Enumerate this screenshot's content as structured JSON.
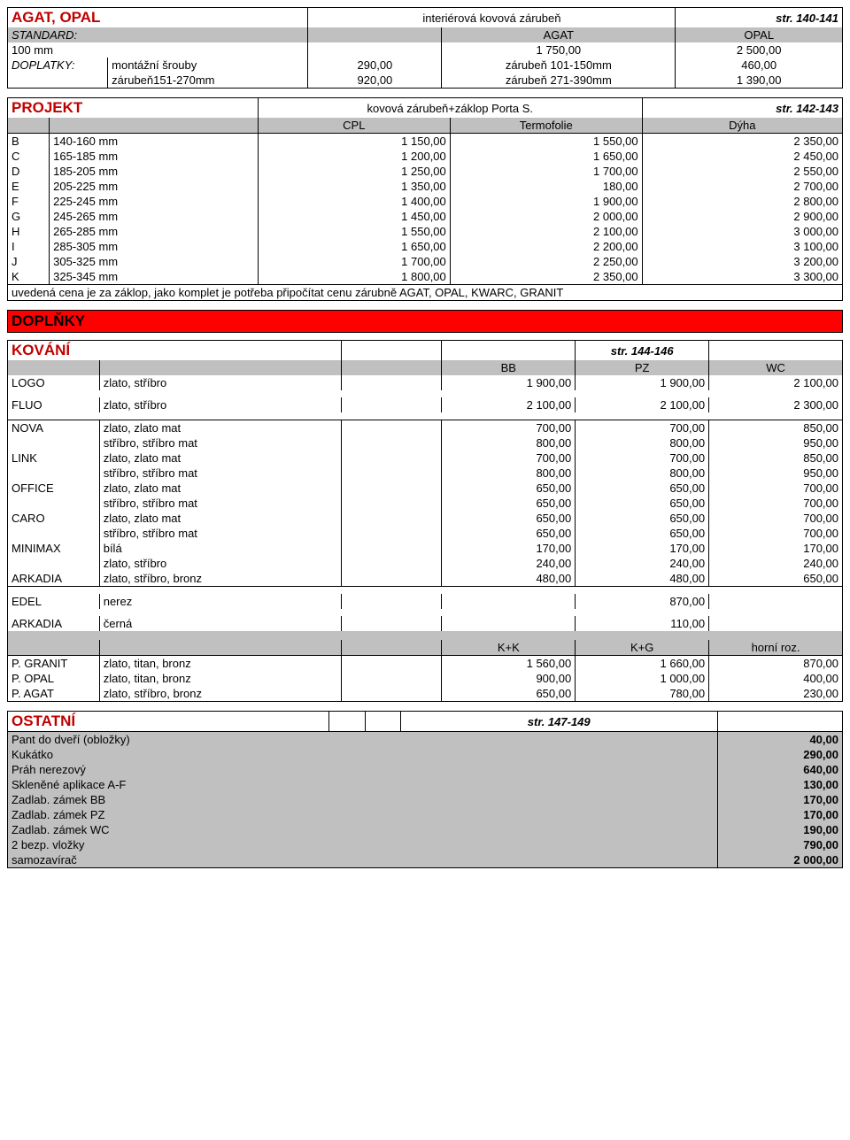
{
  "agat": {
    "title": "AGAT, OPAL",
    "subtitle": "interiérová kovová zárubeň",
    "page": "str. 140-141",
    "standard_label": "STANDARD:",
    "standard_cols": [
      "AGAT",
      "OPAL"
    ],
    "r100": {
      "label": "100 mm",
      "v1": "1 750,00",
      "v2": "2 500,00"
    },
    "doplatky_label": "DOPLATKY:",
    "dop": [
      {
        "label": "montážní šrouby",
        "v1": "290,00",
        "mid": "zárubeň 101-150mm",
        "v2": "460,00"
      },
      {
        "label": "zárubeň151-270mm",
        "v1": "920,00",
        "mid": "zárubeň 271-390mm",
        "v2": "1 390,00"
      }
    ]
  },
  "projekt": {
    "title": "PROJEKT",
    "subtitle": "kovová zárubeň+záklop Porta S.",
    "page": "str. 142-143",
    "cols": [
      "CPL",
      "Termofolie",
      "Dýha"
    ],
    "rows": [
      {
        "k": "B",
        "r": "140-160 mm",
        "c": [
          "1 150,00",
          "1 550,00",
          "2 350,00"
        ]
      },
      {
        "k": "C",
        "r": "165-185 mm",
        "c": [
          "1 200,00",
          "1 650,00",
          "2 450,00"
        ]
      },
      {
        "k": "D",
        "r": "185-205 mm",
        "c": [
          "1 250,00",
          "1 700,00",
          "2 550,00"
        ]
      },
      {
        "k": "E",
        "r": "205-225 mm",
        "c": [
          "1 350,00",
          "180,00",
          "2 700,00"
        ]
      },
      {
        "k": "F",
        "r": "225-245 mm",
        "c": [
          "1 400,00",
          "1 900,00",
          "2 800,00"
        ]
      },
      {
        "k": "G",
        "r": "245-265 mm",
        "c": [
          "1 450,00",
          "2 000,00",
          "2 900,00"
        ]
      },
      {
        "k": "H",
        "r": "265-285 mm",
        "c": [
          "1 550,00",
          "2 100,00",
          "3 000,00"
        ]
      },
      {
        "k": "I",
        "r": "285-305 mm",
        "c": [
          "1 650,00",
          "2 200,00",
          "3 100,00"
        ]
      },
      {
        "k": "J",
        "r": "305-325 mm",
        "c": [
          "1 700,00",
          "2 250,00",
          "3 200,00"
        ]
      },
      {
        "k": "K",
        "r": "325-345 mm",
        "c": [
          "1 800,00",
          "2 350,00",
          "3 300,00"
        ]
      }
    ],
    "note": "uvedená cena je za záklop, jako komplet je potřeba připočítat cenu zárubně AGAT, OPAL, KWARC, GRANIT"
  },
  "doplnky": {
    "title": "DOPLŇKY"
  },
  "kovani": {
    "title": "KOVÁNÍ",
    "page": "str. 144-146",
    "cols": [
      "BB",
      "PZ",
      "WC"
    ],
    "logo": {
      "k": "LOGO",
      "d": "zlato, stříbro",
      "v": [
        "1 900,00",
        "1 900,00",
        "2 100,00"
      ]
    },
    "fluo": {
      "k": "FLUO",
      "d": "zlato, stříbro",
      "v": [
        "2 100,00",
        "2 100,00",
        "2 300,00"
      ]
    },
    "group": [
      {
        "k": "NOVA",
        "d": "zlato, zlato mat",
        "v": [
          "700,00",
          "700,00",
          "850,00"
        ]
      },
      {
        "k": "",
        "d": "stříbro, stříbro mat",
        "v": [
          "800,00",
          "800,00",
          "950,00"
        ]
      },
      {
        "k": "LINK",
        "d": "zlato, zlato mat",
        "v": [
          "700,00",
          "700,00",
          "850,00"
        ]
      },
      {
        "k": "",
        "d": "stříbro, stříbro mat",
        "v": [
          "800,00",
          "800,00",
          "950,00"
        ]
      },
      {
        "k": "OFFICE",
        "d": "zlato, zlato mat",
        "v": [
          "650,00",
          "650,00",
          "700,00"
        ]
      },
      {
        "k": "",
        "d": "stříbro, stříbro mat",
        "v": [
          "650,00",
          "650,00",
          "700,00"
        ]
      },
      {
        "k": "CARO",
        "d": "zlato, zlato mat",
        "v": [
          "650,00",
          "650,00",
          "700,00"
        ]
      },
      {
        "k": "",
        "d": "stříbro, stříbro mat",
        "v": [
          "650,00",
          "650,00",
          "700,00"
        ]
      },
      {
        "k": "MINIMAX",
        "d": "bílá",
        "v": [
          "170,00",
          "170,00",
          "170,00"
        ]
      },
      {
        "k": "",
        "d": "zlato, stříbro",
        "v": [
          "240,00",
          "240,00",
          "240,00"
        ]
      },
      {
        "k": "ARKADIA",
        "d": "zlato, stříbro, bronz",
        "v": [
          "480,00",
          "480,00",
          "650,00"
        ]
      }
    ],
    "edel": {
      "k": "EDEL",
      "d": "nerez",
      "v": "870,00"
    },
    "arkadia2": {
      "k": "ARKADIA",
      "d": "černá",
      "v": "110,00"
    },
    "bottom_cols": [
      "K+K",
      "K+G",
      "horní roz."
    ],
    "bottom": [
      {
        "k": "P. GRANIT",
        "d": "zlato, titan, bronz",
        "v": [
          "1 560,00",
          "1 660,00",
          "870,00"
        ]
      },
      {
        "k": "P. OPAL",
        "d": "zlato, titan, bronz",
        "v": [
          "900,00",
          "1 000,00",
          "400,00"
        ]
      },
      {
        "k": "P. AGAT",
        "d": "zlato, stříbro, bronz",
        "v": [
          "650,00",
          "780,00",
          "230,00"
        ]
      }
    ]
  },
  "ostatni": {
    "title": "OSTATNÍ",
    "page": "str. 147-149",
    "rows": [
      {
        "d": "Pant do dveří (obložky)",
        "v": "40,00"
      },
      {
        "d": "Kukátko",
        "v": "290,00"
      },
      {
        "d": "Práh nerezový",
        "v": "640,00"
      },
      {
        "d": "Skleněné aplikace A-F",
        "v": "130,00"
      },
      {
        "d": "Zadlab. zámek BB",
        "v": "170,00"
      },
      {
        "d": "Zadlab. zámek PZ",
        "v": "170,00"
      },
      {
        "d": "Zadlab. zámek WC",
        "v": "190,00"
      },
      {
        "d": "2 bezp. vložky",
        "v": "790,00"
      },
      {
        "d": "samozavírač",
        "v": "2 000,00"
      }
    ]
  }
}
